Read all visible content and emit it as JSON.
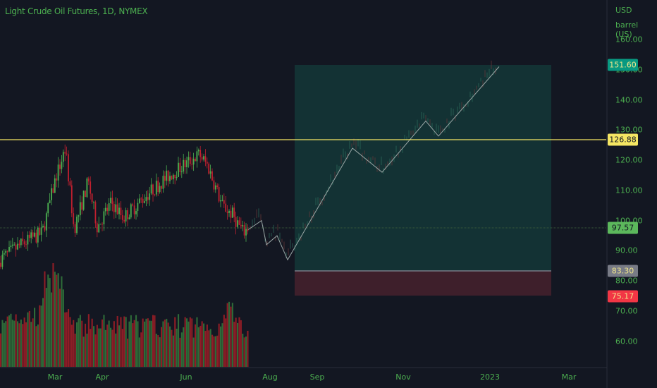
{
  "header": {
    "title": "Light Crude Oil Futures, 1D, NYMEX"
  },
  "price_axis": {
    "currency": "USD",
    "unit": "barrel (US)",
    "ticks": [
      "160.00",
      "150.00",
      "140.00",
      "130.00",
      "120.00",
      "110.00",
      "100.00",
      "90.00",
      "80.00",
      "70.00",
      "60.00"
    ]
  },
  "time_axis": {
    "ticks": [
      "Mar",
      "Apr",
      "Jun",
      "Aug",
      "Sep",
      "Nov",
      "2023",
      "Mar"
    ]
  },
  "badges": {
    "target": {
      "label": "151.60",
      "bg": "#089981",
      "fg": "#f0e68c"
    },
    "resistance": {
      "label": "126.88",
      "bg": "#f5e663",
      "fg": "#131722"
    },
    "last": {
      "label": "97.57",
      "bg": "#5cb85c",
      "fg": "#131722"
    },
    "entry": {
      "label": "83.30",
      "bg": "#787b86",
      "fg": "#f0e68c"
    },
    "stop": {
      "label": "75.17",
      "bg": "#f23645",
      "fg": "#f0e68c"
    }
  },
  "colors": {
    "background": "#131722",
    "up": "#4caf50",
    "down": "#c2202f",
    "vol_up": "#2e6b38",
    "vol_down": "#8f1d26",
    "profit_zone": "#133234",
    "loss_zone": "#3e1f2b",
    "resistance_line": "#f5e663",
    "projection_line": "#9aa7a6",
    "axis_text": "#4caf50"
  },
  "chart_data": {
    "type": "candlestick",
    "title": "Light Crude Oil Futures, 1D, NYMEX",
    "xlabel": "",
    "ylabel": "USD / barrel (US)",
    "ylim": [
      52,
      170
    ],
    "x_ticks": [
      "Mar",
      "Apr",
      "Jun",
      "Aug",
      "Sep",
      "Nov",
      "2023",
      "Mar"
    ],
    "y_ticks": [
      60,
      70,
      80,
      90,
      100,
      110,
      120,
      130,
      140,
      150,
      160
    ],
    "horizontal_lines": [
      {
        "name": "resistance",
        "value": 126.88,
        "color": "#f5e663"
      },
      {
        "name": "last_price",
        "value": 97.57,
        "style": "dotted"
      }
    ],
    "long_position": {
      "entry": 83.3,
      "target": 151.6,
      "stop": 75.17,
      "x_start": "Sep (approx)",
      "x_end": "Feb 2023 (approx)"
    },
    "historical_close_path": [
      {
        "date": "Jan-end",
        "close": 87
      },
      {
        "date": "Feb-mid",
        "close": 92
      },
      {
        "date": "Feb-end",
        "close": 96
      },
      {
        "date": "Mar-early",
        "close": 115
      },
      {
        "date": "Mar-08",
        "close": 123.7
      },
      {
        "date": "Mar-mid",
        "close": 97
      },
      {
        "date": "Mar-late",
        "close": 113
      },
      {
        "date": "Apr-early",
        "close": 98
      },
      {
        "date": "Apr-mid",
        "close": 106
      },
      {
        "date": "Apr-late",
        "close": 101
      },
      {
        "date": "May-mid",
        "close": 110
      },
      {
        "date": "May-late",
        "close": 115
      },
      {
        "date": "Jun-08",
        "close": 122
      },
      {
        "date": "Jun-mid",
        "close": 118
      },
      {
        "date": "Jun-late",
        "close": 105
      },
      {
        "date": "Jul-early",
        "close": 102
      },
      {
        "date": "Jul-mid",
        "close": 96
      },
      {
        "date": "Jul-end",
        "close": 97.57
      }
    ],
    "projection_path": [
      {
        "date": "Jul-end",
        "value": 97
      },
      {
        "date": "Aug-early",
        "value": 100
      },
      {
        "date": "Aug-mid",
        "value": 92
      },
      {
        "date": "Aug-late",
        "value": 95
      },
      {
        "date": "Sep-early",
        "value": 87
      },
      {
        "date": "Oct-early",
        "value": 124
      },
      {
        "date": "Oct-mid",
        "value": 116
      },
      {
        "date": "Nov-mid",
        "value": 133
      },
      {
        "date": "Nov-late",
        "value": 128
      },
      {
        "date": "Jan-2023",
        "value": 151
      }
    ],
    "volume_note": "Volume histogram at bottom, red/green bars, peak around early March"
  }
}
